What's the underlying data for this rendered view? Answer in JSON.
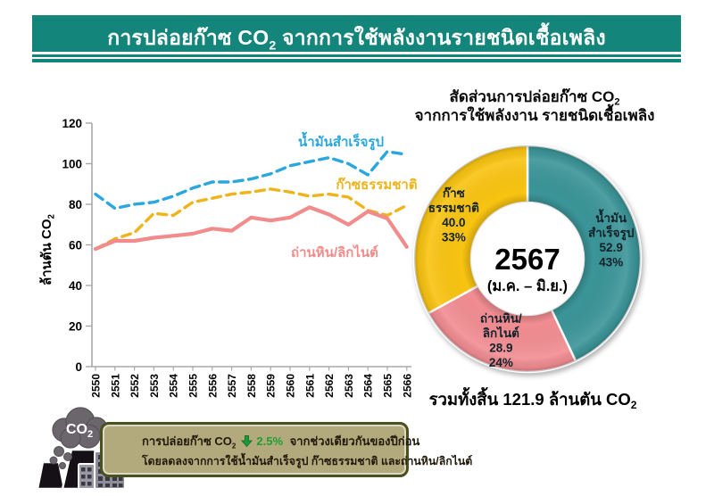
{
  "header": {
    "title_pre": "การปล่อยก๊าซ CO",
    "title_sub": "2",
    "title_post": " จากการใช้พลังงานรายชนิดเชื้อเพลิง",
    "bg_color": "#14857A"
  },
  "chart_data": [
    {
      "id": "co2-by-fuel-line-chart",
      "type": "line",
      "title": "",
      "xlabel": "",
      "ylabel": "ล้านตัน CO2",
      "ylim": [
        0,
        120
      ],
      "yticks": [
        0,
        20,
        40,
        60,
        80,
        100,
        120
      ],
      "grid": false,
      "legend_position": "inline-labels",
      "x": [
        "2550",
        "2551",
        "2552",
        "2553",
        "2554",
        "2555",
        "2556",
        "2557",
        "2558",
        "2559",
        "2560",
        "2561",
        "2562",
        "2563",
        "2564",
        "2565",
        "2566"
      ],
      "series": [
        {
          "name": "น้ำมันสำเร็จรูป",
          "color": "#2BA7E0",
          "style": "dashed",
          "values": [
            85,
            78,
            80,
            81,
            84,
            88,
            91,
            91,
            92.5,
            95,
            99,
            101,
            103,
            100,
            94.5,
            106,
            104.5
          ]
        },
        {
          "name": "ก๊าซธรรมชาติ",
          "color": "#EFB41C",
          "style": "dashed",
          "values": [
            58,
            63,
            66,
            75.5,
            74.5,
            81,
            83,
            85,
            86,
            87.5,
            86,
            84,
            85,
            83.5,
            77,
            74.5,
            79.5
          ]
        },
        {
          "name": "ถ่านหิน/ลิกไนต์",
          "color": "#F28B8B",
          "style": "solid",
          "values": [
            58,
            62,
            62,
            63.5,
            64.5,
            65.5,
            68,
            67,
            73.5,
            72,
            73.5,
            78.5,
            75,
            70,
            76.5,
            73,
            59
          ]
        }
      ]
    },
    {
      "id": "co2-share-donut",
      "type": "pie",
      "subtype": "donut",
      "title_line1": "สัดส่วนการปล่อยก๊าซ CO2",
      "title_line2": "จากการใช้พลังงาน รายชนิดเชื้อเพลิง",
      "center_label": "2567",
      "center_sublabel": "(ม.ค. – มิ.ย.)",
      "total_text": "รวมทั้งสิ้น 121.9 ล้านตัน CO2",
      "unit": "ล้านตัน CO2",
      "slices": [
        {
          "name_lines": [
            "น้ำมัน",
            "สำเร็จรูป"
          ],
          "value": 52.9,
          "pct": 43,
          "color": "#3B9598"
        },
        {
          "name_lines": [
            "ถ่านหิน/",
            "ลิกไนต์"
          ],
          "value": 28.9,
          "pct": 24,
          "color": "#F28D92"
        },
        {
          "name_lines": [
            "ก๊าซ",
            "ธรรมชาติ"
          ],
          "value": 40.0,
          "pct": 33,
          "color": "#F9C411"
        }
      ]
    }
  ],
  "callout": {
    "line1_pre": "การปล่อยก๊าซ CO",
    "line1_sub": "2",
    "drop_pct": "2.5%",
    "line1_post": " จากช่วงเดียวกันของปีก่อน",
    "line2": "โดยลดลงจากการใช้น้ำมันสำเร็จรูป ก๊าซธรรมชาติ และถ่านหิน/ลิกไนต์",
    "pct_color": "#1E9E36",
    "box_bg": "#B2A97C",
    "box_border": "#49521E",
    "cloud_label_pre": "CO",
    "cloud_label_sub": "2"
  }
}
